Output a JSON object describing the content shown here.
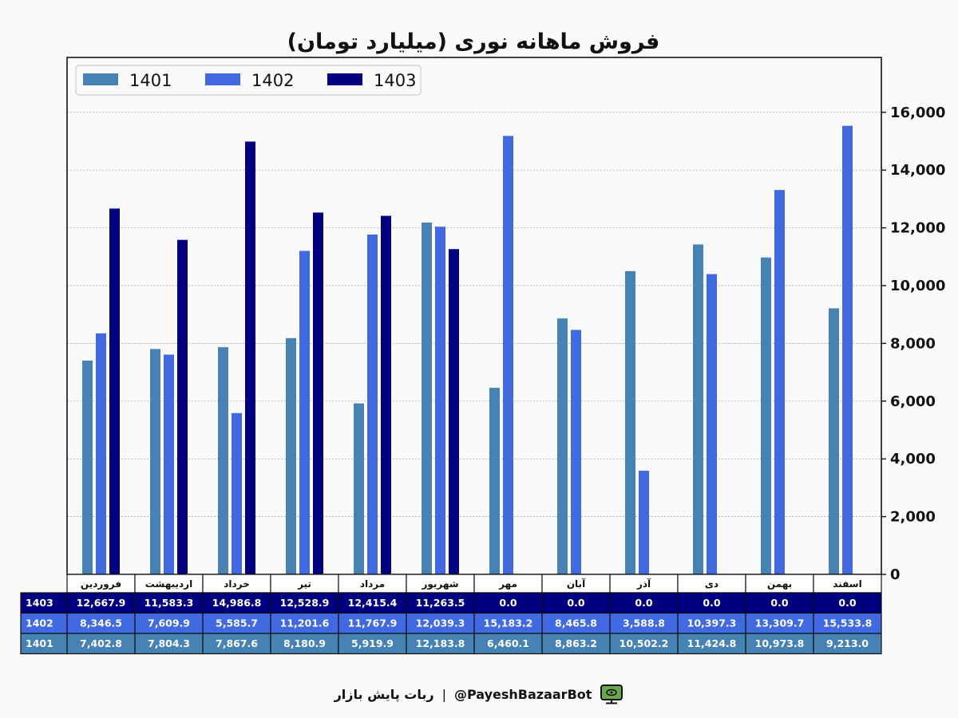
{
  "chart_data": {
    "type": "bar",
    "title": "فروش ماهانه نوری (میلیارد تومان)",
    "categories": [
      "فروردین",
      "اردیبهشت",
      "خرداد",
      "تیر",
      "مرداد",
      "شهریور",
      "مهر",
      "آبان",
      "آذر",
      "دی",
      "بهمن",
      "اسفند"
    ],
    "series": [
      {
        "name": "1401",
        "color": "#4682b4",
        "values": [
          7402.8,
          7804.3,
          7867.6,
          8180.9,
          5919.9,
          12183.8,
          6460.1,
          8863.2,
          10502.2,
          11424.8,
          10973.8,
          9213.0
        ]
      },
      {
        "name": "1402",
        "color": "#4169e1",
        "values": [
          8346.5,
          7609.9,
          5585.7,
          11201.6,
          11767.9,
          12039.3,
          15183.2,
          8465.8,
          3588.8,
          10397.3,
          13309.7,
          15533.8
        ]
      },
      {
        "name": "1403",
        "color": "#000080",
        "values": [
          12667.9,
          11583.3,
          14986.8,
          12528.9,
          12415.4,
          11263.5,
          0.0,
          0.0,
          0.0,
          0.0,
          0.0,
          0.0
        ]
      }
    ],
    "yticks": [
      "0",
      "2,000",
      "4,000",
      "6,000",
      "8,000",
      "10,000",
      "12,000",
      "14,000",
      "16,000"
    ],
    "ylim": [
      0,
      17900
    ],
    "y_axis_side": "right",
    "grid": true,
    "legend": "top-left",
    "table": {
      "rows": [
        {
          "label": "1403",
          "series": 2,
          "cells": [
            "12,667.9",
            "11,583.3",
            "14,986.8",
            "12,528.9",
            "12,415.4",
            "11,263.5",
            "0.0",
            "0.0",
            "0.0",
            "0.0",
            "0.0",
            "0.0"
          ]
        },
        {
          "label": "1402",
          "series": 1,
          "cells": [
            "8,346.5",
            "7,609.9",
            "5,585.7",
            "11,201.6",
            "11,767.9",
            "12,039.3",
            "15,183.2",
            "8,465.8",
            "3,588.8",
            "10,397.3",
            "13,309.7",
            "15,533.8"
          ]
        },
        {
          "label": "1401",
          "series": 0,
          "cells": [
            "7,402.8",
            "7,804.3",
            "7,867.6",
            "8,180.9",
            "5,919.9",
            "12,183.8",
            "6,460.1",
            "8,863.2",
            "10,502.2",
            "11,424.8",
            "10,973.8",
            "9,213.0"
          ]
        }
      ]
    }
  },
  "footer": {
    "bot_name": "ربات پایش بازار",
    "separator": "|",
    "handle": "@PayeshBazaarBot",
    "icon": "tv-icon"
  }
}
